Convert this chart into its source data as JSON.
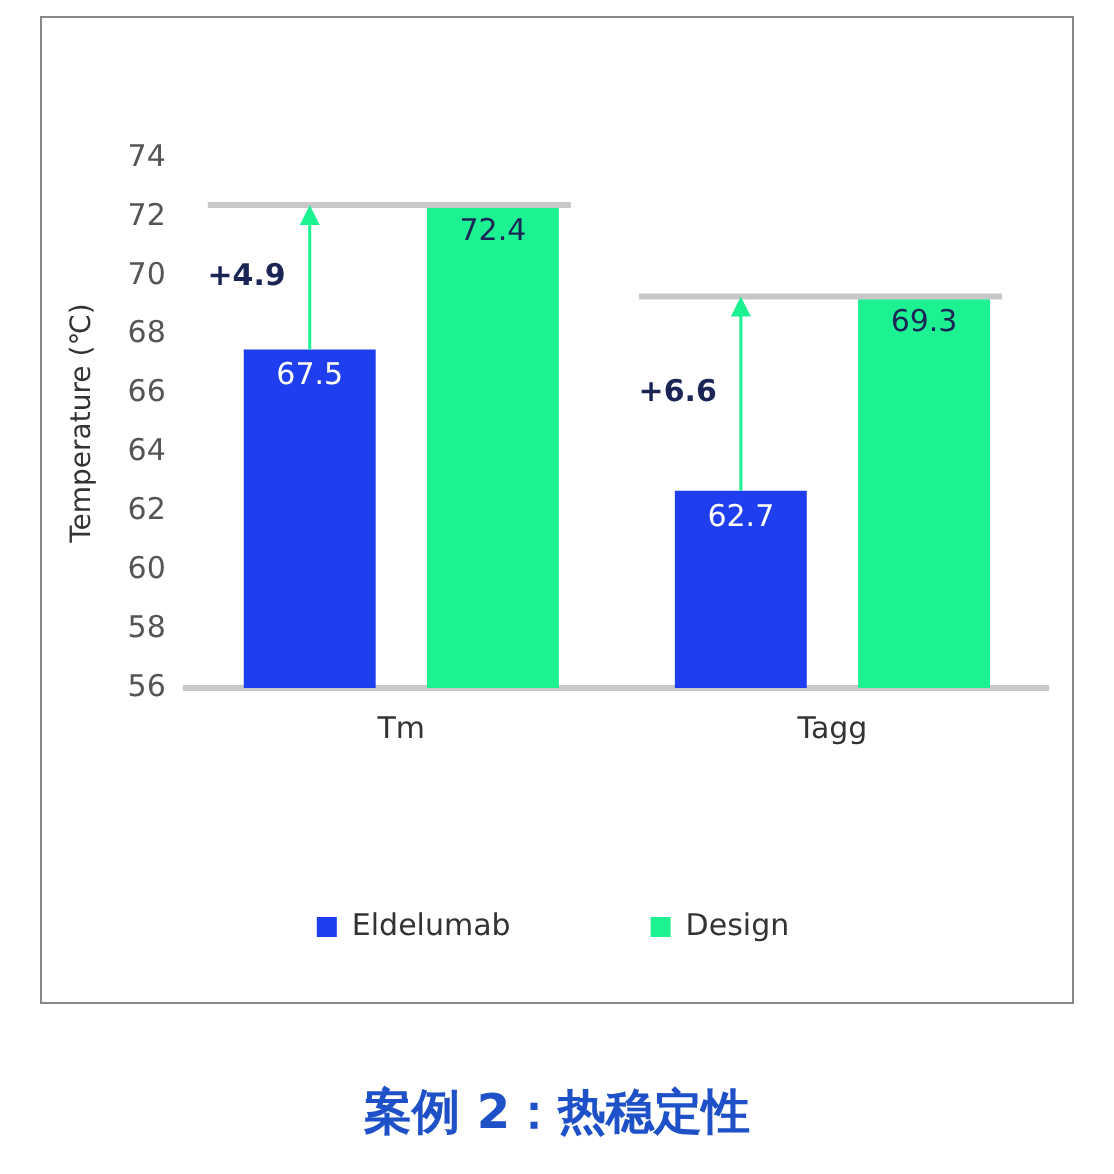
{
  "chart_data": {
    "type": "bar",
    "title": "案例 2：热稳定性",
    "ylabel": "Temperature (℃)",
    "categories": [
      "Tm",
      "Tagg"
    ],
    "series": [
      {
        "name": "Eldelumab",
        "color": "#1e3ef0",
        "values": [
          67.5,
          62.7
        ]
      },
      {
        "name": "Design",
        "color": "#1df293",
        "values": [
          72.4,
          69.3
        ]
      }
    ],
    "ylim": [
      56,
      74
    ],
    "yticks": [
      56,
      58,
      60,
      62,
      64,
      66,
      68,
      70,
      72,
      74
    ],
    "grid": false,
    "legend": "bottom",
    "data_labels": true,
    "ref_lines": [
      {
        "axis": "y",
        "value": 72.4,
        "color": "#c8c8c8"
      },
      {
        "axis": "y",
        "value": 69.3,
        "color": "#c8c8c8"
      }
    ],
    "annotations": [
      "+4.9",
      "+6.6"
    ]
  }
}
